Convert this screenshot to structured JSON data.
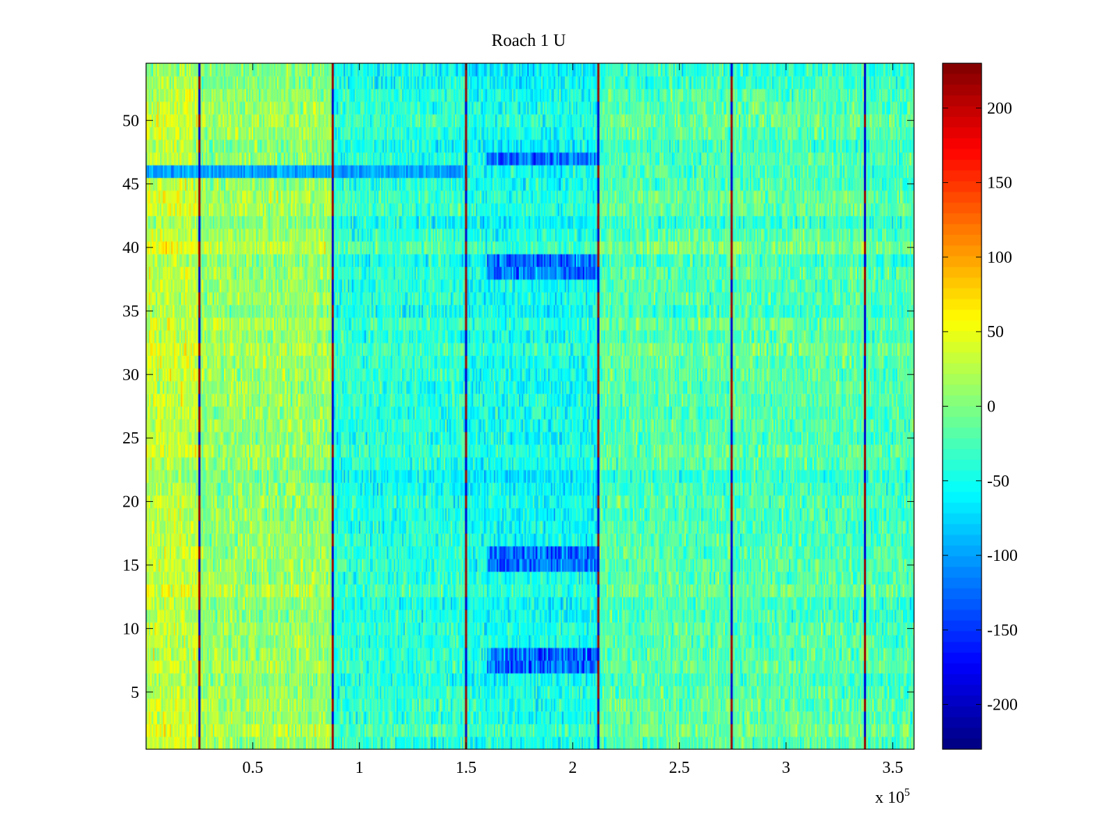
{
  "chart_data": {
    "type": "heatmap",
    "title": "Roach 1 U",
    "xlabel": "",
    "ylabel": "",
    "x_multiplier_label": "x 10",
    "x_multiplier_exp": "5",
    "xlim": [
      0,
      360000
    ],
    "ylim": [
      0.5,
      54.5
    ],
    "x_ticks": [
      50000,
      100000,
      150000,
      200000,
      250000,
      300000,
      350000
    ],
    "x_tick_labels": [
      "0.5",
      "1",
      "1.5",
      "2",
      "2.5",
      "3",
      "3.5"
    ],
    "y_ticks": [
      5,
      10,
      15,
      20,
      25,
      30,
      35,
      40,
      45,
      50
    ],
    "y_tick_labels": [
      "5",
      "10",
      "15",
      "20",
      "25",
      "30",
      "35",
      "40",
      "45",
      "50"
    ],
    "rows": 54,
    "colormap": "jet",
    "clim": [
      -230,
      230
    ],
    "colorbar_ticks": [
      200,
      150,
      100,
      50,
      0,
      -50,
      -100,
      -150,
      -200
    ],
    "colorbar_tick_labels": [
      "200",
      "150",
      "100",
      "50",
      "0",
      "-50",
      "-100",
      "-150",
      "-200"
    ],
    "segment_boundaries_x": [
      25000,
      87500,
      150000,
      212000,
      274500,
      337000
    ],
    "segment_mean_values": [
      30,
      10,
      -40,
      -50,
      -20,
      -20,
      -25
    ],
    "dip_region": {
      "x_range": [
        160000,
        212000
      ],
      "rows": [
        7,
        8,
        15,
        16,
        38,
        39,
        47
      ],
      "value": -160
    },
    "high_row_band": {
      "rows": [
        46
      ],
      "x_range": [
        0,
        150000
      ],
      "value": -100
    }
  }
}
